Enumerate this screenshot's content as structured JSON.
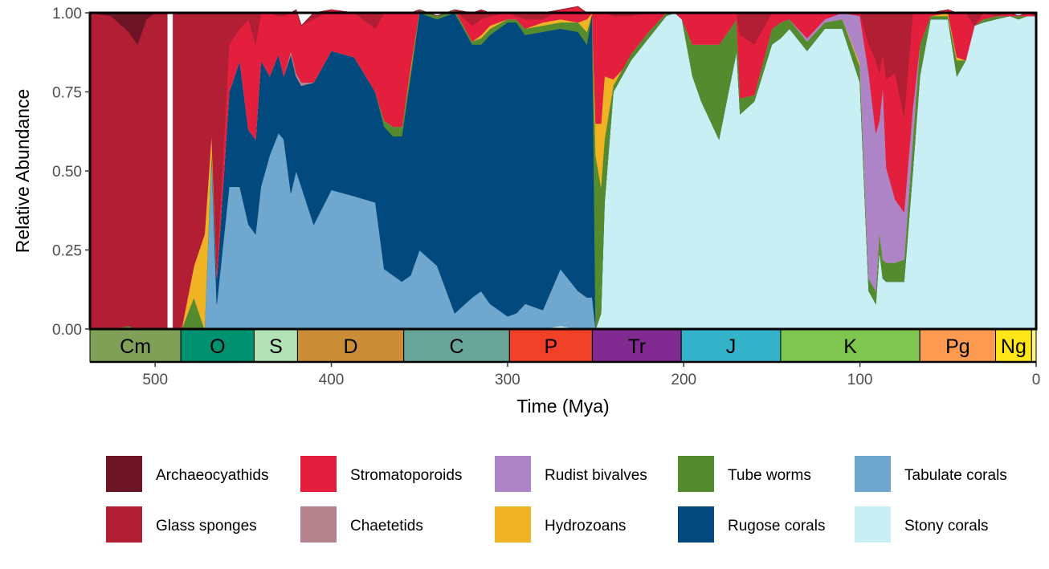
{
  "chart_data": {
    "type": "area",
    "stacked": true,
    "xlabel": "Time (Mya)",
    "ylabel": "Relative Abundance",
    "xlim": [
      537,
      0
    ],
    "ylim": [
      0,
      1
    ],
    "x_reversed": true,
    "x_ticks": [
      500,
      400,
      300,
      200,
      100,
      0
    ],
    "y_ticks": [
      "0.00",
      "0.25",
      "0.50",
      "0.75",
      "1.00"
    ],
    "grid": false,
    "legend_position": "bottom",
    "gap": [
      493,
      490
    ],
    "x": [
      537,
      525,
      515,
      510,
      505,
      500,
      493,
      490,
      485,
      478,
      472,
      468,
      465,
      458,
      452,
      447,
      443,
      440,
      435,
      430,
      427,
      423,
      420,
      417,
      410,
      400,
      387,
      375,
      370,
      365,
      360,
      355,
      350,
      340,
      330,
      320,
      315,
      310,
      300,
      295,
      290,
      280,
      270,
      260,
      255,
      252,
      250,
      247,
      245,
      240,
      235,
      230,
      220,
      210,
      205,
      201,
      195,
      190,
      180,
      170,
      168,
      160,
      150,
      145,
      140,
      130,
      120,
      110,
      100,
      95,
      91,
      89,
      87,
      85,
      80,
      75,
      70,
      66,
      60,
      50,
      45,
      40,
      35,
      30,
      23,
      15,
      10,
      5,
      0
    ],
    "series": [
      {
        "name": "Stony corals",
        "color": "#c9eff5",
        "values": [
          0,
          0,
          0,
          0,
          0,
          0,
          0,
          0,
          0,
          0,
          0,
          0,
          0,
          0,
          0,
          0,
          0,
          0,
          0,
          0,
          0,
          0,
          0,
          0,
          0,
          0,
          0,
          0,
          0,
          0,
          0,
          0,
          0,
          0,
          0,
          0,
          0,
          0,
          0,
          0,
          0,
          0,
          0.01,
          0,
          0,
          0,
          0,
          0.05,
          0.4,
          0.75,
          0.8,
          0.85,
          0.92,
          0.99,
          1.0,
          0.98,
          0.8,
          0.72,
          0.6,
          0.88,
          0.68,
          0.72,
          0.9,
          0.92,
          0.95,
          0.88,
          0.95,
          0.95,
          0.78,
          0.12,
          0.08,
          0.25,
          0.16,
          0.15,
          0.15,
          0.15,
          0.5,
          0.8,
          0.98,
          0.98,
          0.8,
          0.85,
          0.96,
          0.97,
          0.98,
          0.99,
          0.98,
          0.99,
          0.99
        ]
      },
      {
        "name": "Tabulate corals",
        "color": "#6fa7cf",
        "values": [
          0,
          0,
          0,
          0,
          0,
          0,
          0,
          0,
          0,
          0,
          0,
          0.55,
          0.08,
          0.45,
          0.45,
          0.33,
          0.3,
          0.45,
          0.55,
          0.62,
          0.6,
          0.43,
          0.5,
          0.45,
          0.33,
          0.44,
          0.42,
          0.4,
          0.19,
          0.17,
          0.15,
          0.17,
          0.25,
          0.2,
          0.05,
          0.1,
          0.12,
          0.08,
          0.04,
          0.05,
          0.08,
          0.06,
          0.18,
          0.12,
          0.1,
          0.1,
          0,
          0,
          0,
          0,
          0,
          0,
          0,
          0,
          0,
          0,
          0,
          0,
          0,
          0,
          0,
          0,
          0,
          0,
          0,
          0,
          0,
          0,
          0,
          0,
          0,
          0,
          0,
          0,
          0,
          0,
          0,
          0,
          0,
          0,
          0,
          0,
          0,
          0,
          0,
          0,
          0,
          0,
          0
        ]
      },
      {
        "name": "Rugose corals",
        "color": "#024a7d",
        "values": [
          0,
          0,
          0,
          0,
          0,
          0,
          0,
          0,
          0,
          0,
          0,
          0,
          0.08,
          0.3,
          0.4,
          0.3,
          0.3,
          0.4,
          0.25,
          0.25,
          0.2,
          0.44,
          0.3,
          0.32,
          0.45,
          0.44,
          0.44,
          0.35,
          0.45,
          0.44,
          0.46,
          0.63,
          0.75,
          0.78,
          0.95,
          0.8,
          0.78,
          0.85,
          0.93,
          0.92,
          0.85,
          0.88,
          0.76,
          0.82,
          0.8,
          0.9,
          0,
          0,
          0,
          0,
          0,
          0,
          0,
          0,
          0,
          0,
          0,
          0,
          0,
          0,
          0,
          0,
          0,
          0,
          0,
          0,
          0,
          0,
          0,
          0,
          0,
          0,
          0,
          0,
          0,
          0,
          0,
          0,
          0,
          0,
          0,
          0,
          0,
          0,
          0,
          0,
          0,
          0,
          0
        ]
      },
      {
        "name": "Tube worms",
        "color": "#558b2f",
        "values": [
          0,
          0,
          0.01,
          0,
          0,
          0,
          0,
          0,
          0,
          0.1,
          0,
          0.02,
          0,
          0,
          0,
          0,
          0,
          0,
          0,
          0,
          0,
          0,
          0,
          0,
          0,
          0,
          0,
          0,
          0.02,
          0.03,
          0.03,
          0.02,
          0.01,
          0.01,
          0.01,
          0.01,
          0.02,
          0.02,
          0.01,
          0.01,
          0.02,
          0.02,
          0.02,
          0.03,
          0.04,
          0,
          0.55,
          0.4,
          0.2,
          0.02,
          0.02,
          0.02,
          0.02,
          0.01,
          0,
          0,
          0.1,
          0.18,
          0.3,
          0.1,
          0.05,
          0.02,
          0.05,
          0.05,
          0.03,
          0.03,
          0.02,
          0.03,
          0.05,
          0.04,
          0.04,
          0.06,
          0.06,
          0.06,
          0.06,
          0.07,
          0.1,
          0.1,
          0.01,
          0.01,
          0.05,
          0,
          0,
          0.01,
          0.01,
          0,
          0.01,
          0,
          0
        ]
      },
      {
        "name": "Hydrozoans",
        "color": "#f0b323",
        "values": [
          0,
          0,
          0,
          0,
          0,
          0,
          0,
          0,
          0,
          0.1,
          0.3,
          0.05,
          0,
          0,
          0,
          0,
          0,
          0,
          0,
          0,
          0,
          0,
          0,
          0,
          0,
          0,
          0,
          0,
          0,
          0,
          0,
          0.01,
          0,
          0,
          0,
          0,
          0.01,
          0.01,
          0,
          0,
          0,
          0.01,
          0.01,
          0,
          0.04,
          0,
          0.1,
          0.2,
          0.2,
          0.02,
          0,
          0,
          0,
          0,
          0,
          0,
          0,
          0,
          0,
          0,
          0,
          0,
          0,
          0,
          0,
          0,
          0,
          0,
          0.01,
          0,
          0,
          0,
          0,
          0,
          0,
          0,
          0,
          0,
          0,
          0.01,
          0.01,
          0,
          0,
          0,
          0,
          0,
          0,
          0,
          0
        ]
      },
      {
        "name": "Rudist bivalves",
        "color": "#ad84c6",
        "values": [
          0,
          0,
          0,
          0,
          0,
          0,
          0,
          0,
          0,
          0,
          0,
          0,
          0,
          0,
          0,
          0,
          0,
          0,
          0,
          0,
          0,
          0,
          0,
          0,
          0,
          0,
          0,
          0,
          0,
          0,
          0,
          0,
          0,
          0,
          0,
          0,
          0,
          0,
          0,
          0,
          0,
          0,
          0,
          0,
          0,
          0,
          0,
          0,
          0,
          0,
          0,
          0,
          0,
          0,
          0,
          0,
          0,
          0,
          0,
          0,
          0,
          0,
          0,
          0,
          0,
          0.01,
          0.01,
          0.02,
          0.15,
          0.65,
          0.5,
          0.35,
          0.55,
          0.3,
          0.2,
          0.15,
          0.1,
          0,
          0,
          0,
          0,
          0,
          0,
          0,
          0,
          0,
          0,
          0,
          0
        ]
      },
      {
        "name": "Chaetetids",
        "color": "#b5838d",
        "values": [
          0,
          0,
          0,
          0,
          0,
          0,
          0,
          0,
          0,
          0,
          0,
          0,
          0,
          0,
          0,
          0,
          0,
          0,
          0,
          0,
          0,
          0.01,
          0.01,
          0.01,
          0,
          0,
          0,
          0,
          0,
          0,
          0,
          0,
          0,
          0,
          0,
          0,
          0,
          0,
          0,
          0,
          0,
          0,
          0,
          0,
          0,
          0,
          0,
          0,
          0,
          0,
          0,
          0,
          0,
          0,
          0,
          0,
          0,
          0,
          0,
          0,
          0,
          0,
          0,
          0,
          0,
          0,
          0,
          0,
          0,
          0,
          0,
          0,
          0,
          0,
          0,
          0,
          0,
          0,
          0,
          0,
          0,
          0,
          0,
          0,
          0,
          0,
          0,
          0,
          0
        ]
      },
      {
        "name": "Stromatoporoids",
        "color": "#e31f3d",
        "values": [
          0,
          0,
          0,
          0,
          0,
          0,
          0,
          0,
          0.01,
          0,
          0,
          0.01,
          0.04,
          0.15,
          0.1,
          0.35,
          0.3,
          0.15,
          0.2,
          0.12,
          0.19,
          0.12,
          0.2,
          0.18,
          0.2,
          0.13,
          0.14,
          0.2,
          0.34,
          0.36,
          0.36,
          0.17,
          0,
          0,
          0,
          0.05,
          0.05,
          0.03,
          0.02,
          0.01,
          0.03,
          0.01,
          0.03,
          0.05,
          0.02,
          0,
          0.35,
          0.35,
          0.2,
          0.2,
          0.17,
          0.12,
          0.06,
          0,
          0,
          0.02,
          0.1,
          0.1,
          0.1,
          0.02,
          0.2,
          0.16,
          0.05,
          0.03,
          0.02,
          0.08,
          0.02,
          0,
          0.01,
          0.09,
          0.23,
          0.15,
          0.1,
          0.28,
          0.4,
          0.3,
          0.3,
          0.1,
          0.01,
          0.01,
          0.14,
          0.15,
          0,
          0.02,
          0,
          0.01,
          0,
          0.01,
          0
        ]
      },
      {
        "name": "Glass sponges",
        "color": "#b21f35",
        "values": [
          1.0,
          0.99,
          0.93,
          0.9,
          0.98,
          1.0,
          1.0,
          1.0,
          0.99,
          0.8,
          0.7,
          0.37,
          0.8,
          0.1,
          0.05,
          0.02,
          0.1,
          0,
          0,
          0.01,
          0.01,
          0,
          0,
          0,
          0.02,
          0,
          0,
          0.05,
          0,
          0,
          0,
          0,
          0,
          0,
          0,
          0.04,
          0.03,
          0.01,
          0,
          0.01,
          0.02,
          0.02,
          0,
          0,
          0,
          0,
          0,
          0,
          0,
          0.01,
          0.01,
          0.01,
          0,
          0,
          0,
          0,
          0,
          0,
          0,
          0,
          0.07,
          0.1,
          0,
          0,
          0,
          0,
          0,
          0,
          0,
          0.1,
          0.15,
          0.19,
          0.13,
          0.21,
          0.19,
          0.33,
          0,
          0,
          0,
          0,
          0,
          0,
          0.04,
          0,
          0.01,
          0,
          0,
          0,
          0.01
        ]
      },
      {
        "name": "Archaeocyathids",
        "color": "#6d1525",
        "values": [
          0,
          0.01,
          0.06,
          0.1,
          0.02,
          0,
          0,
          0,
          0,
          0,
          0,
          0,
          0,
          0,
          0,
          0,
          0,
          0,
          0,
          0,
          0,
          0,
          0,
          0,
          0,
          0,
          0,
          0,
          0,
          0,
          0,
          0,
          0,
          0,
          0,
          0,
          0,
          0,
          0,
          0,
          0,
          0,
          0,
          0,
          0,
          0,
          0,
          0,
          0,
          0,
          0,
          0,
          0,
          0,
          0,
          0,
          0,
          0,
          0,
          0,
          0,
          0,
          0,
          0,
          0,
          0,
          0,
          0,
          0,
          0,
          0,
          0,
          0,
          0,
          0,
          0,
          0,
          0,
          0,
          0,
          0,
          0,
          0,
          0,
          0,
          0,
          0,
          0,
          0
        ]
      }
    ],
    "legend_order": [
      "Archaeocyathids",
      "Glass sponges",
      "Stromatoporoids",
      "Chaetetids",
      "Rudist bivalves",
      "Hydrozoans",
      "Tube worms",
      "Rugose corals",
      "Tabulate corals",
      "Stony corals"
    ],
    "periods": [
      {
        "label": "Cm",
        "start": 538.8,
        "end": 485.4,
        "color": "#7fa056"
      },
      {
        "label": "O",
        "start": 485.4,
        "end": 443.8,
        "color": "#009270"
      },
      {
        "label": "S",
        "start": 443.8,
        "end": 419.2,
        "color": "#b3e1b6"
      },
      {
        "label": "D",
        "start": 419.2,
        "end": 358.9,
        "color": "#cb8c37"
      },
      {
        "label": "C",
        "start": 358.9,
        "end": 298.9,
        "color": "#67a599"
      },
      {
        "label": "P",
        "start": 298.9,
        "end": 251.9,
        "color": "#f04028"
      },
      {
        "label": "Tr",
        "start": 251.9,
        "end": 201.4,
        "color": "#812b92"
      },
      {
        "label": "J",
        "start": 201.4,
        "end": 145.0,
        "color": "#34b2c9"
      },
      {
        "label": "K",
        "start": 145.0,
        "end": 66.0,
        "color": "#7fc64e"
      },
      {
        "label": "Pg",
        "start": 66.0,
        "end": 23.0,
        "color": "#fd9a52"
      },
      {
        "label": "Ng",
        "start": 23.0,
        "end": 2.6,
        "color": "#ffe619"
      },
      {
        "label": "",
        "start": 2.6,
        "end": 0,
        "color": "#f9f97f"
      }
    ]
  }
}
